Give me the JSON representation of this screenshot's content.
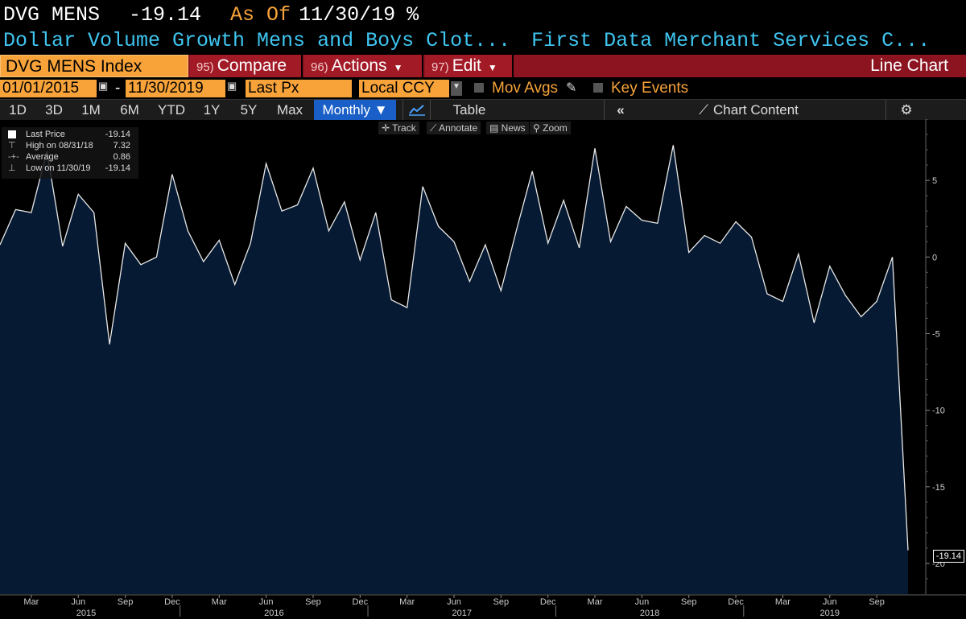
{
  "header": {
    "ticker": "DVG MENS",
    "last_value": "-19.14",
    "as_of_label": "As Of",
    "as_of_date": "11/30/19",
    "unit": "%",
    "description": "Dollar Volume Growth Mens and Boys Clot...",
    "source": "First Data Merchant Services C..."
  },
  "command_bar": {
    "security": "DVG MENS Index",
    "compare": {
      "num": "95)",
      "label": "Compare"
    },
    "actions": {
      "num": "96)",
      "label": "Actions"
    },
    "edit": {
      "num": "97)",
      "label": "Edit"
    },
    "chart_type": "Line Chart"
  },
  "options": {
    "start_date": "01/01/2015",
    "end_date": "11/30/2019",
    "dash": "-",
    "field": "Last Px",
    "currency": "Local CCY",
    "mov_avgs": "Mov Avgs",
    "key_events": "Key Events"
  },
  "toolbar": {
    "periods": [
      "1D",
      "3D",
      "1M",
      "6M",
      "YTD",
      "1Y",
      "5Y",
      "Max"
    ],
    "frequency": "Monthly ▼",
    "table": "Table",
    "chart_content": "Chart Content",
    "track": "Track",
    "annotate": "Annotate",
    "news": "News",
    "zoom": "Zoom"
  },
  "legend": {
    "last_price_label": "Last Price",
    "last_price_value": "-19.14",
    "high_label": "High on 08/31/18",
    "high_value": "7.32",
    "average_label": "Average",
    "average_value": "0.86",
    "low_label": "Low on 11/30/19",
    "low_value": "-19.14"
  },
  "last_marker": "-19.14",
  "colors": {
    "fill": "#061a33",
    "line": "#e8e8e8",
    "accent": "#f7a33a",
    "bar": "#8b1420"
  },
  "chart_data": {
    "type": "area",
    "title": "DVG MENS Index",
    "ylim": [
      -22,
      9
    ],
    "y_ticks": [
      5,
      0,
      -5,
      -10,
      -15,
      -20
    ],
    "x_start": "2015-01",
    "x_tick_labels": [
      "Mar",
      "Jun",
      "Sep",
      "Dec",
      "Mar",
      "Jun",
      "Sep",
      "Dec",
      "Mar",
      "Jun",
      "Sep",
      "Dec",
      "Mar",
      "Jun",
      "Sep",
      "Dec",
      "Mar",
      "Jun",
      "Sep"
    ],
    "x_tick_months": [
      2,
      5,
      8,
      11,
      14,
      17,
      20,
      23,
      26,
      29,
      32,
      35,
      38,
      41,
      44,
      47,
      50,
      53,
      56
    ],
    "year_labels": [
      "2015",
      "2016",
      "2017",
      "2018",
      "2019"
    ],
    "series": [
      {
        "values": [
          0.8,
          3.1,
          2.9,
          6.9,
          0.7,
          4.1,
          2.9,
          -5.7,
          0.9,
          -0.5,
          0.0,
          5.4,
          1.7,
          -0.3,
          1.1,
          -1.8,
          0.9,
          6.1,
          3.0,
          3.4,
          5.8,
          1.7,
          3.6,
          -0.2,
          2.9,
          -2.8,
          -3.3,
          4.6,
          2.0,
          1.0,
          -1.6,
          0.8,
          -2.2,
          1.8,
          5.6,
          0.9,
          3.7,
          0.6,
          7.1,
          1.0,
          3.3,
          2.4,
          2.2,
          7.3,
          0.3,
          1.4,
          0.9,
          2.3,
          1.3,
          -2.4,
          -2.9,
          0.2,
          -4.3,
          -0.6,
          -2.5,
          -3.9,
          -2.9,
          0.0,
          -19.14
        ]
      }
    ]
  }
}
